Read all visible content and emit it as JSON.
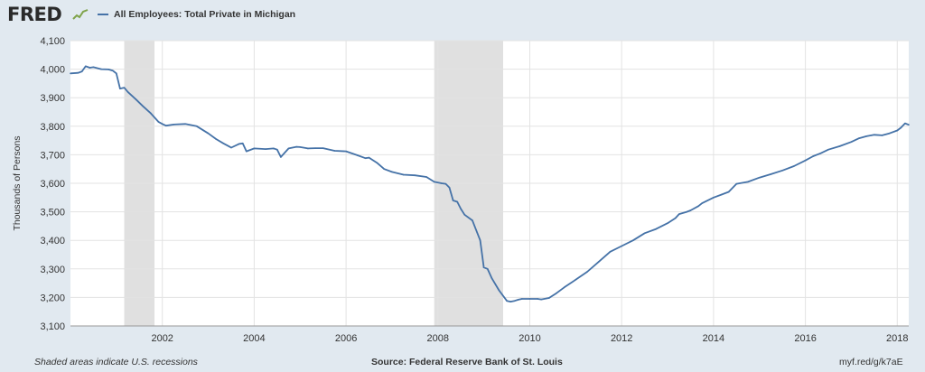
{
  "header": {
    "logo_text": "FRED",
    "logo_icon": "trend-chart-icon",
    "legend_label": "All Employees: Total Private in Michigan"
  },
  "colors": {
    "background": "#e1e9f0",
    "plot_background": "#ffffff",
    "series": "#4572a7",
    "recession": "#e0e0e0",
    "grid": "#e3e3e3"
  },
  "chart_data": {
    "type": "line",
    "title": "",
    "xlabel": "",
    "ylabel": "Thousands of Persons",
    "ylim": [
      3100,
      4100
    ],
    "yticks": [
      3100,
      3200,
      3300,
      3400,
      3500,
      3600,
      3700,
      3800,
      3900,
      4000,
      4100
    ],
    "ytick_labels": [
      "3,100",
      "3,200",
      "3,300",
      "3,400",
      "3,500",
      "3,600",
      "3,700",
      "3,800",
      "3,900",
      "4,000",
      "4,100"
    ],
    "xlim": [
      2000.0,
      2018.25
    ],
    "xticks": [
      2002,
      2004,
      2006,
      2008,
      2010,
      2012,
      2014,
      2016,
      2018
    ],
    "xtick_labels": [
      "2002",
      "2004",
      "2006",
      "2008",
      "2010",
      "2012",
      "2014",
      "2016",
      "2018"
    ],
    "grid": true,
    "recessions": [
      [
        2001.17,
        2001.83
      ],
      [
        2007.92,
        2009.42
      ]
    ],
    "series": [
      {
        "name": "All Employees: Total Private in Michigan",
        "x": [
          2000.0,
          2000.17,
          2000.25,
          2000.33,
          2000.42,
          2000.5,
          2000.67,
          2000.83,
          2000.92,
          2001.0,
          2001.08,
          2001.17,
          2001.25,
          2001.42,
          2001.58,
          2001.75,
          2001.92,
          2002.0,
          2002.08,
          2002.25,
          2002.5,
          2002.75,
          2003.0,
          2003.17,
          2003.33,
          2003.5,
          2003.67,
          2003.75,
          2003.83,
          2004.0,
          2004.25,
          2004.42,
          2004.5,
          2004.58,
          2004.75,
          2004.92,
          2005.0,
          2005.17,
          2005.33,
          2005.5,
          2005.75,
          2006.0,
          2006.25,
          2006.42,
          2006.5,
          2006.67,
          2006.83,
          2007.0,
          2007.25,
          2007.5,
          2007.75,
          2007.92,
          2008.08,
          2008.17,
          2008.25,
          2008.33,
          2008.42,
          2008.5,
          2008.58,
          2008.75,
          2008.92,
          2009.0,
          2009.08,
          2009.17,
          2009.33,
          2009.5,
          2009.58,
          2009.67,
          2009.75,
          2009.83,
          2010.0,
          2010.17,
          2010.25,
          2010.42,
          2010.58,
          2010.75,
          2011.0,
          2011.25,
          2011.5,
          2011.75,
          2012.0,
          2012.25,
          2012.5,
          2012.75,
          2013.0,
          2013.17,
          2013.25,
          2013.42,
          2013.5,
          2013.67,
          2013.75,
          2014.0,
          2014.17,
          2014.33,
          2014.5,
          2014.75,
          2015.0,
          2015.25,
          2015.5,
          2015.75,
          2016.0,
          2016.17,
          2016.33,
          2016.5,
          2016.75,
          2017.0,
          2017.17,
          2017.33,
          2017.5,
          2017.67,
          2017.83,
          2018.0,
          2018.08,
          2018.17,
          2018.25
        ],
        "y": [
          3985,
          3987,
          3992,
          4010,
          4005,
          4007,
          4000,
          3999,
          3995,
          3985,
          3932,
          3935,
          3920,
          3895,
          3870,
          3845,
          3815,
          3808,
          3802,
          3806,
          3808,
          3800,
          3775,
          3755,
          3740,
          3725,
          3738,
          3740,
          3712,
          3722,
          3720,
          3722,
          3718,
          3692,
          3722,
          3728,
          3727,
          3722,
          3723,
          3723,
          3714,
          3712,
          3698,
          3688,
          3690,
          3672,
          3650,
          3640,
          3630,
          3628,
          3622,
          3605,
          3600,
          3598,
          3585,
          3540,
          3535,
          3510,
          3490,
          3470,
          3400,
          3305,
          3300,
          3268,
          3225,
          3188,
          3185,
          3188,
          3192,
          3195,
          3195,
          3195,
          3193,
          3198,
          3215,
          3235,
          3262,
          3290,
          3325,
          3360,
          3380,
          3400,
          3425,
          3440,
          3460,
          3478,
          3492,
          3500,
          3505,
          3520,
          3530,
          3550,
          3560,
          3570,
          3598,
          3605,
          3620,
          3632,
          3645,
          3660,
          3680,
          3695,
          3705,
          3718,
          3730,
          3745,
          3758,
          3765,
          3770,
          3768,
          3775,
          3785,
          3795,
          3810,
          3805
        ]
      }
    ]
  },
  "footer": {
    "left": "Shaded areas indicate U.S. recessions",
    "middle": "Source: Federal Reserve Bank of St. Louis",
    "right": "myf.red/g/k7aE"
  }
}
